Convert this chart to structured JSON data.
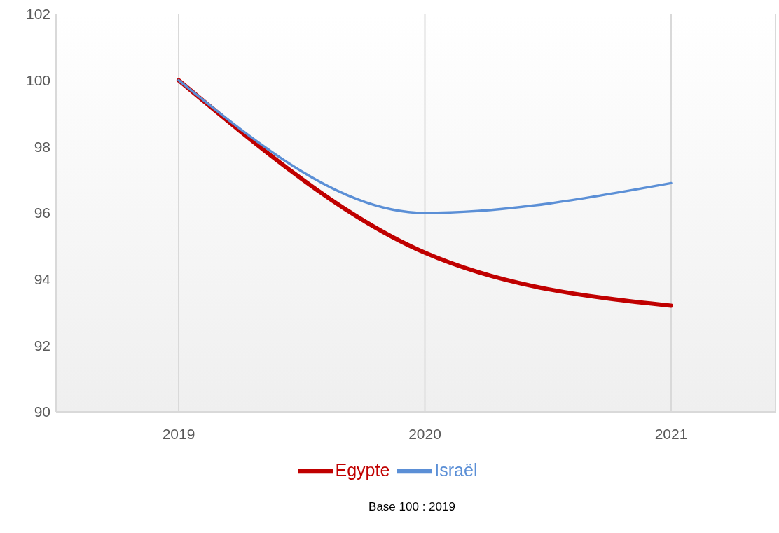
{
  "chart_data": {
    "type": "line",
    "categories": [
      "2019",
      "2020",
      "2021"
    ],
    "series": [
      {
        "name": "Egypte",
        "color": "#c00000",
        "values": [
          100,
          94.8,
          93.2
        ]
      },
      {
        "name": "Israël",
        "color": "#5b8fd6",
        "values": [
          100,
          96.0,
          96.9
        ]
      }
    ],
    "ylim": [
      90,
      102
    ],
    "yticks": [
      90,
      92,
      94,
      96,
      98,
      100,
      102
    ],
    "grid": "x",
    "legend": "bottom",
    "marker": "none",
    "line_style": "solid",
    "annotations": [
      "Base 100 : 2019"
    ]
  }
}
